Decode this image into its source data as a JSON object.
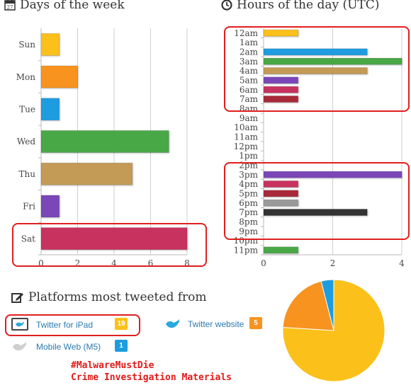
{
  "days_title": "Days of the week",
  "hours_title": "Hours of the day (UTC)",
  "platforms_title": "Platforms most tweeted from",
  "chart_data": [
    {
      "type": "bar",
      "orientation": "horizontal",
      "title": "Days of the week",
      "categories": [
        "Sun",
        "Mon",
        "Tue",
        "Wed",
        "Thu",
        "Fri",
        "Sat"
      ],
      "values": [
        1,
        2,
        1,
        7,
        5,
        1,
        8
      ],
      "colors": [
        "#fcc01a",
        "#f7931e",
        "#1d9de0",
        "#48a846",
        "#c49a57",
        "#7b47b8",
        "#c8325f"
      ],
      "xlim": [
        0,
        8
      ],
      "xticks": [
        0,
        2,
        4,
        6,
        8
      ],
      "grid": true
    },
    {
      "type": "bar",
      "orientation": "horizontal",
      "title": "Hours of the day (UTC)",
      "categories": [
        "12am",
        "1am",
        "2am",
        "3am",
        "4am",
        "5am",
        "6am",
        "7am",
        "8am",
        "9am",
        "10am",
        "11am",
        "12pm",
        "1pm",
        "2pm",
        "3pm",
        "4pm",
        "5pm",
        "6pm",
        "7pm",
        "8pm",
        "9pm",
        "10pm",
        "11pm"
      ],
      "values": [
        1,
        0,
        3,
        4,
        3,
        1,
        1,
        1,
        0,
        0,
        0,
        0,
        0,
        0,
        0,
        4,
        1,
        1,
        1,
        3,
        0,
        0,
        0,
        1
      ],
      "colors": [
        "#fcc01a",
        "#f7931e",
        "#1d9de0",
        "#48a846",
        "#c49a57",
        "#7b47b8",
        "#c8325f",
        "#a82a3a",
        "#999999",
        "#333333",
        "#fcc01a",
        "#f7931e",
        "#1d9de0",
        "#48a846",
        "#c49a57",
        "#7b47b8",
        "#c8325f",
        "#a82a3a",
        "#999999",
        "#333333",
        "#fcc01a",
        "#f7931e",
        "#1d9de0",
        "#48a846"
      ],
      "xlim": [
        0,
        4
      ],
      "xticks": [
        0,
        2,
        4
      ],
      "grid": true
    },
    {
      "type": "pie",
      "title": "Platforms most tweeted from",
      "categories": [
        "Twitter for iPad",
        "Twitter website",
        "Mobile Web (M5)"
      ],
      "values": [
        19,
        5,
        1
      ],
      "colors": [
        "#fcc01a",
        "#f7931e",
        "#1d9de0"
      ]
    }
  ],
  "platforms": [
    {
      "name": "Twitter for iPad",
      "count": "19",
      "badge_color": "#fcc01a",
      "icon": "ipad-icon"
    },
    {
      "name": "Twitter website",
      "count": "5",
      "badge_color": "#f7931e",
      "icon": "twitter-bird-icon"
    },
    {
      "name": "Mobile Web (M5)",
      "count": "1",
      "badge_color": "#1d9de0",
      "icon": "twitter-bird-gray-icon"
    }
  ],
  "watermark": {
    "line1": "#MalwareMustDie",
    "line2": "Crime Investigation Materials"
  },
  "calendar_icon_text": "27"
}
